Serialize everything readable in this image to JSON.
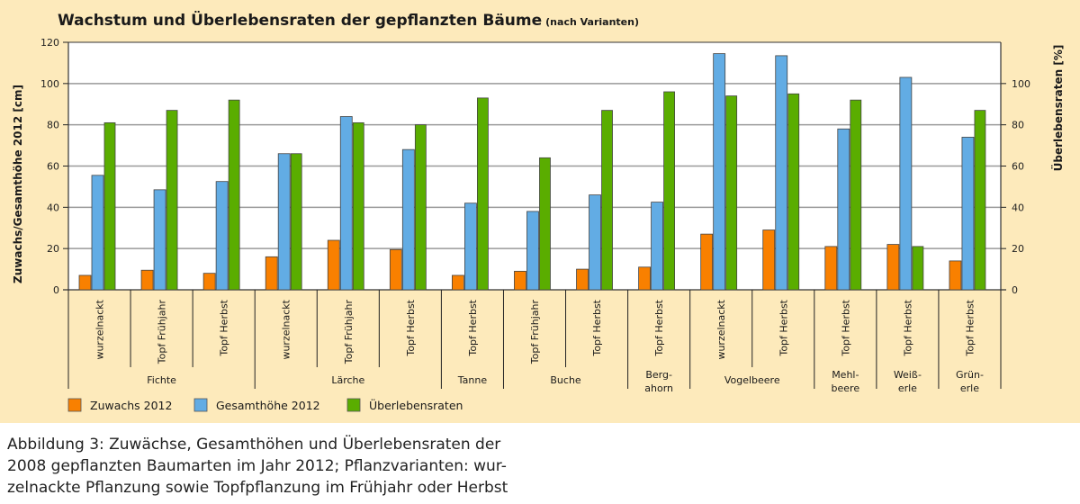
{
  "chart_data": {
    "type": "bar",
    "title": "Wachstum und Überlebensraten der gepflanzten Bäume",
    "subtitle": "(nach Varianten)",
    "ylabel": "Zuwachs/Gesamthöhe 2012 [cm]",
    "ylabel_right": "Überlebensraten [%]",
    "ylim": [
      0,
      120
    ],
    "ylim_right": [
      0,
      120
    ],
    "yticks": [
      0,
      20,
      40,
      60,
      80,
      100,
      120
    ],
    "yticks_right": [
      0,
      20,
      40,
      60,
      80,
      100
    ],
    "grid": true,
    "legend_position": "bottom-left",
    "categories": [
      "wurzelnackt",
      "Topf Frühjahr",
      "Topf Herbst",
      "wurzelnackt",
      "Topf Frühjahr",
      "Topf Herbst",
      "Topf Herbst",
      "Topf Frühjahr",
      "Topf Herbst",
      "Topf Herbst",
      "wurzelnackt",
      "Topf Herbst",
      "Topf Herbst",
      "Topf Herbst",
      "Topf Herbst"
    ],
    "species": [
      {
        "name": "Fichte",
        "count": 3
      },
      {
        "name": "Lärche",
        "count": 3
      },
      {
        "name": "Tanne",
        "count": 1
      },
      {
        "name": "Buche",
        "count": 2
      },
      {
        "name": "Berg-\nahorn",
        "count": 1
      },
      {
        "name": "Vogelbeere",
        "count": 2
      },
      {
        "name": "Mehl-\nbeere",
        "count": 1
      },
      {
        "name": "Weiß-\nerle",
        "count": 1
      },
      {
        "name": "Grün-\nerle",
        "count": 1
      }
    ],
    "series": [
      {
        "name": "Zuwachs 2012",
        "axis": "left",
        "color": "#f98000",
        "values": [
          7,
          9.5,
          8,
          16,
          24,
          19.5,
          7,
          9,
          10,
          11,
          27,
          29,
          21,
          22,
          14
        ]
      },
      {
        "name": "Gesamthöhe 2012",
        "axis": "left",
        "color": "#62ace4",
        "values": [
          55.5,
          48.5,
          52.5,
          66,
          84,
          68,
          42,
          38,
          46,
          42.5,
          114.5,
          113.5,
          78,
          103,
          74
        ]
      },
      {
        "name": "Überlebensraten",
        "axis": "right",
        "color": "#5aad00",
        "values": [
          81,
          87,
          92,
          66,
          81,
          80,
          93,
          64,
          87,
          96,
          94,
          95,
          92,
          21,
          87
        ]
      }
    ]
  },
  "caption": [
    "Abbildung 3: Zuwächse, Gesamthöhen und Überlebensraten der",
    "2008 gepflanzten Baumarten im Jahr 2012; Pflanzvarianten: wur-",
    "zelnackte Pflanzung sowie Topfpflanzung im Frühjahr oder Herbst"
  ]
}
